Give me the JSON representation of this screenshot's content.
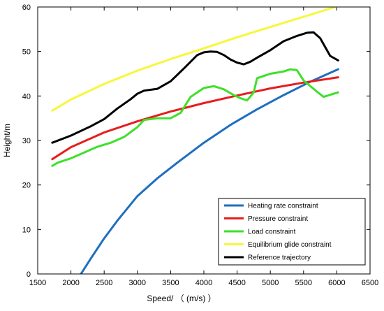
{
  "chart_data": {
    "type": "line",
    "title": "",
    "xlabel": "Speed/ （ (m/s) ）",
    "ylabel": "Height/m",
    "xlim": [
      1500,
      6500
    ],
    "ylim": [
      0,
      60
    ],
    "xticks": [
      1500,
      2000,
      2500,
      3000,
      3500,
      4000,
      4500,
      5000,
      5500,
      6000,
      6500
    ],
    "yticks": [
      0,
      10,
      20,
      30,
      40,
      50,
      60
    ],
    "grid": false,
    "legend_position": "bottom-right",
    "series": [
      {
        "name": "Heating rate constraint",
        "color": "#1f6fbf",
        "x": [
          2150,
          2300,
          2500,
          2700,
          3000,
          3300,
          3600,
          4000,
          4400,
          4800,
          5200,
          5600,
          6020
        ],
        "y": [
          0,
          3.5,
          8,
          12,
          17.5,
          21.5,
          25,
          29.5,
          33.5,
          37,
          40.2,
          43.2,
          46
        ]
      },
      {
        "name": "Pressure constraint",
        "color": "#e81c1c",
        "x": [
          1720,
          2000,
          2500,
          3000,
          3500,
          4000,
          4500,
          5000,
          5500,
          6020
        ],
        "y": [
          25.8,
          28.5,
          31.8,
          34.3,
          36.5,
          38.4,
          40.1,
          41.7,
          43,
          44.2
        ]
      },
      {
        "name": "Load constraint",
        "color": "#3ee02a",
        "x": [
          1720,
          1800,
          2000,
          2200,
          2400,
          2600,
          2800,
          3000,
          3100,
          3300,
          3500,
          3650,
          3800,
          4000,
          4150,
          4300,
          4450,
          4550,
          4650,
          4750,
          4800,
          5000,
          5200,
          5300,
          5400,
          5500,
          5700,
          5800,
          6020
        ],
        "y": [
          24.3,
          25,
          26,
          27.3,
          28.6,
          29.5,
          30.8,
          33,
          34.6,
          35,
          35,
          36.2,
          39.8,
          41.8,
          42.2,
          41.5,
          40.2,
          39.5,
          39,
          40.8,
          44,
          45,
          45.5,
          46,
          45.8,
          43.5,
          41,
          39.8,
          40.8
        ]
      },
      {
        "name": "Equilibrium glide constraint",
        "color": "#f7f73a",
        "x": [
          1720,
          2000,
          2500,
          3000,
          3500,
          4000,
          4500,
          5000,
          5500,
          6020
        ],
        "y": [
          36.7,
          39.2,
          42.7,
          45.7,
          48.3,
          50.7,
          53.2,
          55.5,
          57.8,
          60.2
        ]
      },
      {
        "name": "Reference trajectory",
        "color": "#000000",
        "x": [
          1720,
          2000,
          2300,
          2500,
          2700,
          2900,
          3000,
          3100,
          3300,
          3500,
          3700,
          3900,
          4000,
          4100,
          4200,
          4300,
          4400,
          4500,
          4600,
          4700,
          4800,
          5000,
          5200,
          5400,
          5550,
          5650,
          5750,
          5900,
          6020
        ],
        "y": [
          29.5,
          31.1,
          33.2,
          34.8,
          37.2,
          39.3,
          40.5,
          41.2,
          41.6,
          43.3,
          46.2,
          49.2,
          49.8,
          50,
          49.9,
          49.2,
          48.2,
          47.5,
          47.1,
          47.7,
          48.6,
          50.3,
          52.3,
          53.5,
          54.2,
          54.3,
          53,
          49,
          48
        ]
      }
    ]
  }
}
